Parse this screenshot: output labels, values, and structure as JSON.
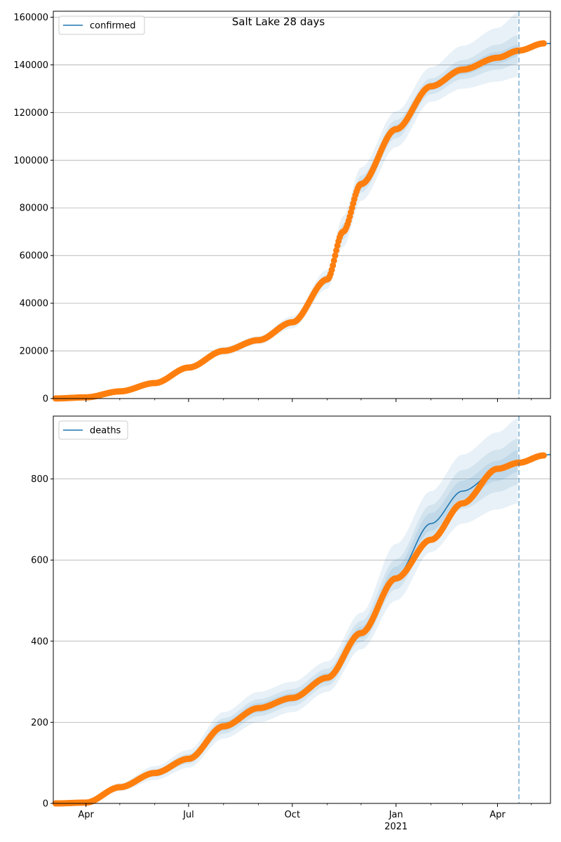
{
  "figure_title": "Salt Lake 28 days",
  "colors": {
    "model_line": "#1f77b4",
    "observed_points": "#ff7f0e",
    "band": "#1f77b4",
    "grid": "#b0b0b0",
    "axes": "#000000"
  },
  "chart_data": [
    {
      "type": "line",
      "legend": [
        "confirmed"
      ],
      "legend_placement": "top-left",
      "grid": "horizontal",
      "x_range": [
        "2020-03-03",
        "2021-05-18"
      ],
      "ylim": [
        0,
        162500
      ],
      "x_ticks": [
        {
          "date": "2020-04-01",
          "label": "Apr"
        },
        {
          "date": "2020-07-01",
          "label": "Jul"
        },
        {
          "date": "2020-10-01",
          "label": "Oct"
        },
        {
          "date": "2021-01-01",
          "label": "Jan"
        },
        {
          "date": "2021-04-01",
          "label": "Apr"
        }
      ],
      "x_minor_ticks": [
        "2020-05-01",
        "2020-06-01",
        "2020-08-01",
        "2020-09-01",
        "2020-11-01",
        "2020-12-01",
        "2021-02-01",
        "2021-03-01",
        "2021-05-01"
      ],
      "y_ticks": [
        0,
        20000,
        40000,
        60000,
        80000,
        100000,
        120000,
        140000,
        160000
      ],
      "y_tick_labels": [
        "0",
        "20000",
        "40000",
        "60000",
        "80000",
        "100000",
        "120000",
        "140000",
        "160000"
      ],
      "forecast_start": "2021-04-20",
      "model_curve": [
        [
          "2020-03-03",
          0
        ],
        [
          "2020-04-01",
          500
        ],
        [
          "2020-05-01",
          3000
        ],
        [
          "2020-06-01",
          6500
        ],
        [
          "2020-07-01",
          13000
        ],
        [
          "2020-08-01",
          20000
        ],
        [
          "2020-09-01",
          24500
        ],
        [
          "2020-10-01",
          32000
        ],
        [
          "2020-11-01",
          50000
        ],
        [
          "2020-11-15",
          70000
        ],
        [
          "2020-12-01",
          90000
        ],
        [
          "2021-01-01",
          113000
        ],
        [
          "2021-02-01",
          131000
        ],
        [
          "2021-03-01",
          138000
        ],
        [
          "2021-04-01",
          143000
        ],
        [
          "2021-04-20",
          146000
        ],
        [
          "2021-05-18",
          149000
        ]
      ],
      "bands": [
        {
          "lower": [
            0,
            450,
            2900,
            6200,
            12200,
            18300,
            22800,
            29500,
            46000,
            63500,
            83000,
            105500,
            124500,
            130000,
            133000,
            135000
          ],
          "upper": [
            0,
            550,
            3100,
            6800,
            13800,
            21700,
            26200,
            34500,
            54000,
            76500,
            97000,
            120500,
            139000,
            148000,
            155500,
            162000
          ]
        },
        {
          "lower": [
            0,
            475,
            2950,
            6350,
            12600,
            19100,
            23650,
            30700,
            48000,
            66700,
            86500,
            109200,
            127700,
            134000,
            138000,
            140500
          ],
          "upper": [
            0,
            525,
            3050,
            6650,
            13400,
            20900,
            25350,
            33300,
            52000,
            73300,
            93500,
            116800,
            134300,
            142000,
            148500,
            152500
          ]
        },
        {
          "lower": [
            0,
            490,
            2980,
            6430,
            12800,
            19550,
            24100,
            31400,
            49000,
            68400,
            88300,
            111200,
            129400,
            136000,
            140500,
            143500
          ],
          "upper": [
            0,
            510,
            3020,
            6570,
            13200,
            20450,
            24900,
            32600,
            51000,
            71600,
            91700,
            114800,
            132600,
            140000,
            145500,
            148500
          ]
        }
      ],
      "observed": [
        [
          "2020-03-05",
          50
        ],
        [
          "2020-04-01",
          500
        ],
        [
          "2020-05-01",
          3000
        ],
        [
          "2020-06-01",
          6500
        ],
        [
          "2020-07-01",
          13000
        ],
        [
          "2020-08-01",
          20000
        ],
        [
          "2020-09-01",
          24500
        ],
        [
          "2020-10-01",
          32000
        ],
        [
          "2020-11-01",
          50000
        ],
        [
          "2020-11-15",
          70000
        ],
        [
          "2020-12-01",
          90000
        ],
        [
          "2021-01-01",
          113000
        ],
        [
          "2021-02-01",
          131000
        ],
        [
          "2021-03-01",
          138000
        ],
        [
          "2021-04-01",
          143000
        ],
        [
          "2021-04-20",
          146000
        ],
        [
          "2021-05-12",
          149000
        ]
      ]
    },
    {
      "type": "line",
      "legend": [
        "deaths"
      ],
      "legend_placement": "top-left",
      "grid": "horizontal",
      "x_range": [
        "2020-03-03",
        "2021-05-18"
      ],
      "ylim": [
        0,
        955
      ],
      "x_ticks": [
        {
          "date": "2020-04-01",
          "label": "Apr"
        },
        {
          "date": "2020-07-01",
          "label": "Jul"
        },
        {
          "date": "2020-10-01",
          "label": "Oct"
        },
        {
          "date": "2021-01-01",
          "label": "Jan"
        },
        {
          "date": "2021-04-01",
          "label": "Apr"
        }
      ],
      "x_year_label": {
        "date": "2021-01-01",
        "label": "2021"
      },
      "x_minor_ticks": [
        "2020-05-01",
        "2020-06-01",
        "2020-08-01",
        "2020-09-01",
        "2020-11-01",
        "2020-12-01",
        "2021-02-01",
        "2021-03-01",
        "2021-05-01"
      ],
      "y_ticks": [
        0,
        200,
        400,
        600,
        800
      ],
      "y_tick_labels": [
        "0",
        "200",
        "400",
        "600",
        "800"
      ],
      "forecast_start": "2021-04-20",
      "model_curve": [
        [
          "2020-03-03",
          0
        ],
        [
          "2020-04-01",
          2
        ],
        [
          "2020-05-01",
          40
        ],
        [
          "2020-06-01",
          75
        ],
        [
          "2020-07-01",
          110
        ],
        [
          "2020-08-01",
          190
        ],
        [
          "2020-09-01",
          235
        ],
        [
          "2020-10-01",
          260
        ],
        [
          "2020-11-01",
          310
        ],
        [
          "2020-12-01",
          420
        ],
        [
          "2021-01-01",
          560
        ],
        [
          "2021-02-01",
          690
        ],
        [
          "2021-03-01",
          770
        ],
        [
          "2021-04-01",
          820
        ],
        [
          "2021-04-20",
          845
        ],
        [
          "2021-05-18",
          860
        ]
      ],
      "bands": [
        {
          "lower": [
            0,
            1,
            30,
            58,
            88,
            160,
            200,
            225,
            275,
            380,
            500,
            620,
            690,
            725,
            740
          ],
          "upper": [
            0,
            3,
            50,
            92,
            132,
            225,
            275,
            300,
            350,
            470,
            640,
            770,
            860,
            915,
            950
          ]
        },
        {
          "lower": [
            0,
            1.5,
            35,
            66,
            98,
            172,
            215,
            240,
            290,
            398,
            528,
            652,
            726,
            768,
            786
          ],
          "upper": [
            0,
            2.5,
            45,
            84,
            122,
            210,
            257,
            282,
            332,
            450,
            602,
            736,
            822,
            872,
            900
          ]
        },
        {
          "lower": [
            0,
            1.8,
            37.5,
            70,
            104,
            180,
            224,
            250,
            300,
            408,
            545,
            672,
            750,
            795,
            818
          ],
          "upper": [
            0,
            2.2,
            42.5,
            80,
            116,
            202,
            248,
            272,
            322,
            436,
            584,
            716,
            796,
            845,
            872
          ]
        }
      ],
      "observed": [
        [
          "2020-03-05",
          0
        ],
        [
          "2020-04-01",
          2
        ],
        [
          "2020-05-01",
          40
        ],
        [
          "2020-06-01",
          75
        ],
        [
          "2020-07-01",
          110
        ],
        [
          "2020-08-01",
          190
        ],
        [
          "2020-09-01",
          235
        ],
        [
          "2020-10-01",
          260
        ],
        [
          "2020-11-01",
          310
        ],
        [
          "2020-12-01",
          420
        ],
        [
          "2021-01-01",
          555
        ],
        [
          "2021-02-01",
          650
        ],
        [
          "2021-03-01",
          740
        ],
        [
          "2021-04-01",
          825
        ],
        [
          "2021-04-20",
          840
        ],
        [
          "2021-05-12",
          858
        ]
      ]
    }
  ]
}
